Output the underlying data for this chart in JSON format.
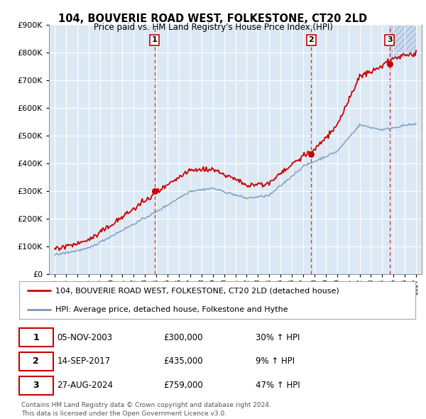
{
  "title": "104, BOUVERIE ROAD WEST, FOLKESTONE, CT20 2LD",
  "subtitle": "Price paid vs. HM Land Registry's House Price Index (HPI)",
  "legend_line1": "104, BOUVERIE ROAD WEST, FOLKESTONE, CT20 2LD (detached house)",
  "legend_line2": "HPI: Average price, detached house, Folkestone and Hythe",
  "sale_points": [
    {
      "label": "1",
      "date_str": "05-NOV-2003",
      "year": 2003.84,
      "price": 300000,
      "hpi_pct": "30% ↑ HPI"
    },
    {
      "label": "2",
      "date_str": "14-SEP-2017",
      "year": 2017.71,
      "price": 435000,
      "hpi_pct": "9% ↑ HPI"
    },
    {
      "label": "3",
      "date_str": "27-AUG-2024",
      "year": 2024.65,
      "price": 759000,
      "hpi_pct": "47% ↑ HPI"
    }
  ],
  "footer1": "Contains HM Land Registry data © Crown copyright and database right 2024.",
  "footer2": "This data is licensed under the Open Government Licence v3.0.",
  "red_color": "#cc0000",
  "blue_color": "#7799bb",
  "bg_color": "#dce9f5",
  "ylim": [
    0,
    900000
  ],
  "xlim_start": 1994.5,
  "xlim_end": 2027.5
}
